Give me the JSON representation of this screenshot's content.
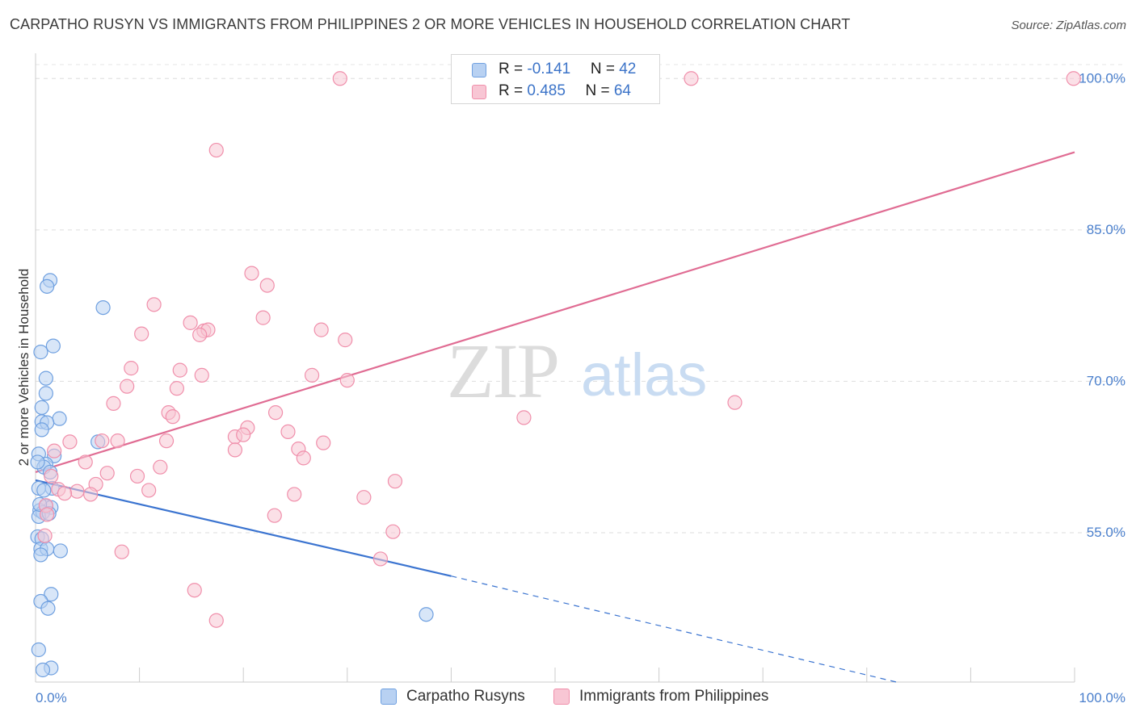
{
  "chart_data": {
    "type": "scatter",
    "title": "CARPATHO RUSYN VS IMMIGRANTS FROM PHILIPPINES 2 OR MORE VEHICLES IN HOUSEHOLD CORRELATION CHART",
    "source": "Source: ZipAtlas.com",
    "xlabel": "",
    "ylabel": "2 or more Vehicles in Household",
    "xlim": [
      0,
      100
    ],
    "ylim": [
      40.2,
      102.5
    ],
    "x_tick_labels": [
      "0.0%",
      "100.0%"
    ],
    "y_ticks": [
      55,
      70,
      85,
      100
    ],
    "y_tick_labels": [
      "55.0%",
      "70.0%",
      "85.0%",
      "100.0%"
    ],
    "watermark": "ZIPatlas",
    "legend": [
      {
        "series": "Carpatho Rusyns",
        "r_label": "R = ",
        "r": "-0.141",
        "n_label": "N = ",
        "n": "42"
      },
      {
        "series": "Immigrants from Philippines",
        "r_label": "R = ",
        "r": "0.485",
        "n_label": "N = ",
        "n": "64"
      }
    ],
    "series": [
      {
        "name": "Carpatho Rusyns",
        "color": "#6fa0e0",
        "fill": "#b8d1f2",
        "line_color": "#3b74d0",
        "trend": {
          "x0": 0,
          "y0": 60.2,
          "x1": 40,
          "y1": 50.7,
          "dash_to_x": 100,
          "dash_to_y": 36.0
        },
        "points": [
          [
            1.4,
            80.0
          ],
          [
            1.1,
            79.4
          ],
          [
            6.5,
            77.3
          ],
          [
            1.7,
            73.5
          ],
          [
            0.5,
            72.9
          ],
          [
            1.0,
            70.3
          ],
          [
            1.0,
            68.8
          ],
          [
            0.6,
            67.4
          ],
          [
            2.3,
            66.3
          ],
          [
            0.6,
            66.0
          ],
          [
            1.1,
            65.9
          ],
          [
            0.6,
            65.2
          ],
          [
            6.0,
            64.0
          ],
          [
            1.8,
            62.6
          ],
          [
            0.3,
            62.8
          ],
          [
            1.0,
            61.8
          ],
          [
            0.8,
            61.5
          ],
          [
            1.4,
            61.0
          ],
          [
            0.3,
            59.4
          ],
          [
            1.6,
            59.4
          ],
          [
            0.8,
            59.2
          ],
          [
            1.0,
            57.6
          ],
          [
            1.5,
            57.5
          ],
          [
            0.4,
            57.2
          ],
          [
            0.7,
            57.0
          ],
          [
            0.3,
            56.6
          ],
          [
            0.2,
            54.6
          ],
          [
            0.6,
            54.4
          ],
          [
            0.5,
            53.4
          ],
          [
            1.1,
            53.4
          ],
          [
            2.4,
            53.2
          ],
          [
            0.5,
            52.8
          ],
          [
            1.5,
            48.9
          ],
          [
            0.5,
            48.2
          ],
          [
            1.2,
            47.5
          ],
          [
            37.6,
            46.9
          ],
          [
            0.3,
            43.4
          ],
          [
            1.5,
            41.6
          ],
          [
            0.7,
            41.4
          ],
          [
            0.2,
            62.0
          ],
          [
            1.3,
            56.9
          ],
          [
            0.4,
            57.8
          ]
        ]
      },
      {
        "name": "Immigrants from Philippines",
        "color": "#f08fab",
        "fill": "#f8c6d4",
        "line_color": "#e06c93",
        "trend": {
          "x0": 0,
          "y0": 61.0,
          "x1": 100,
          "y1": 92.7
        },
        "points": [
          [
            29.3,
            100.0
          ],
          [
            63.1,
            100.0
          ],
          [
            99.9,
            100.0
          ],
          [
            17.4,
            92.9
          ],
          [
            20.8,
            80.7
          ],
          [
            22.3,
            79.5
          ],
          [
            11.4,
            77.6
          ],
          [
            21.9,
            76.3
          ],
          [
            14.9,
            75.8
          ],
          [
            27.5,
            75.1
          ],
          [
            16.2,
            75.0
          ],
          [
            16.6,
            75.1
          ],
          [
            10.2,
            74.7
          ],
          [
            15.8,
            74.6
          ],
          [
            29.8,
            74.1
          ],
          [
            9.2,
            71.3
          ],
          [
            13.9,
            71.1
          ],
          [
            26.6,
            70.6
          ],
          [
            16.0,
            70.6
          ],
          [
            30.0,
            70.1
          ],
          [
            8.8,
            69.5
          ],
          [
            13.6,
            69.3
          ],
          [
            7.5,
            67.8
          ],
          [
            67.3,
            67.9
          ],
          [
            12.8,
            66.9
          ],
          [
            23.1,
            66.9
          ],
          [
            13.2,
            66.5
          ],
          [
            47.0,
            66.4
          ],
          [
            20.4,
            65.4
          ],
          [
            24.3,
            65.0
          ],
          [
            19.2,
            64.5
          ],
          [
            20.0,
            64.7
          ],
          [
            3.3,
            64.0
          ],
          [
            6.4,
            64.1
          ],
          [
            7.9,
            64.1
          ],
          [
            12.6,
            64.1
          ],
          [
            27.7,
            63.9
          ],
          [
            25.3,
            63.3
          ],
          [
            19.2,
            63.2
          ],
          [
            1.8,
            63.1
          ],
          [
            25.8,
            62.4
          ],
          [
            4.8,
            62.0
          ],
          [
            12.0,
            61.5
          ],
          [
            6.9,
            60.9
          ],
          [
            1.5,
            60.6
          ],
          [
            9.8,
            60.6
          ],
          [
            34.6,
            60.1
          ],
          [
            5.8,
            59.8
          ],
          [
            2.2,
            59.3
          ],
          [
            4.0,
            59.1
          ],
          [
            10.9,
            59.2
          ],
          [
            2.8,
            58.9
          ],
          [
            5.3,
            58.8
          ],
          [
            24.9,
            58.8
          ],
          [
            31.6,
            58.5
          ],
          [
            1.0,
            57.7
          ],
          [
            1.1,
            56.8
          ],
          [
            23.0,
            56.7
          ],
          [
            34.4,
            55.1
          ],
          [
            0.9,
            54.7
          ],
          [
            8.3,
            53.1
          ],
          [
            33.2,
            52.4
          ],
          [
            15.3,
            49.3
          ],
          [
            17.4,
            46.3
          ]
        ]
      }
    ]
  }
}
